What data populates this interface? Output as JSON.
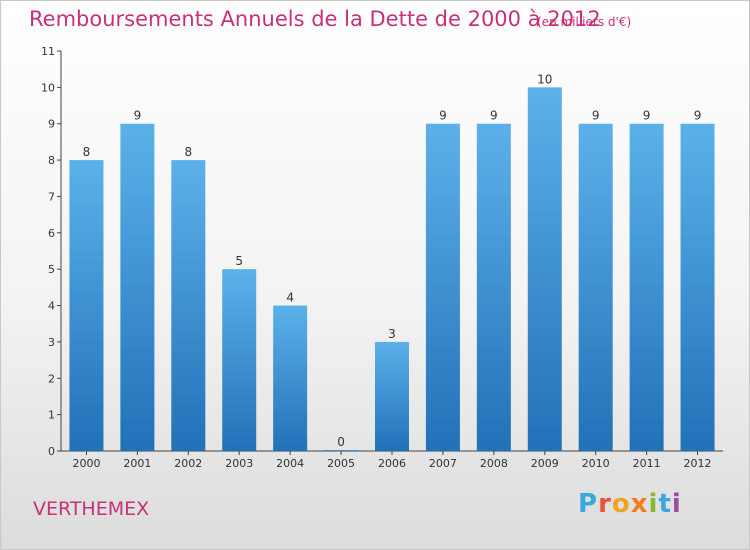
{
  "header": {
    "title": "Remboursements Annuels de la Dette de 2000 à 2012",
    "unit": "(en milliers d'€)"
  },
  "footer": {
    "commune": "VERTHEMEX",
    "logo_text": "Proxiti"
  },
  "colors": {
    "title": "#c8307a",
    "bar_top": "#5cb1ea",
    "bar_bottom": "#2171b8",
    "axis": "#444444",
    "label": "#333333"
  },
  "chart_data": {
    "type": "bar",
    "title": "Remboursements Annuels de la Dette de 2000 à 2012",
    "xlabel": "",
    "ylabel": "",
    "categories": [
      "2000",
      "2001",
      "2002",
      "2003",
      "2004",
      "2005",
      "2006",
      "2007",
      "2008",
      "2009",
      "2010",
      "2011",
      "2012"
    ],
    "values": [
      8,
      9,
      8,
      5,
      4,
      0,
      3,
      9,
      9,
      10,
      9,
      9,
      9
    ],
    "data_labels": [
      "8",
      "9",
      "8",
      "5",
      "4",
      "0",
      "3",
      "9",
      "9",
      "10",
      "9",
      "9",
      "9"
    ],
    "y_ticks": [
      0,
      1,
      2,
      3,
      4,
      5,
      6,
      7,
      8,
      9,
      10,
      11
    ],
    "ylim": [
      0,
      11
    ],
    "grid": false,
    "legend": "none"
  }
}
